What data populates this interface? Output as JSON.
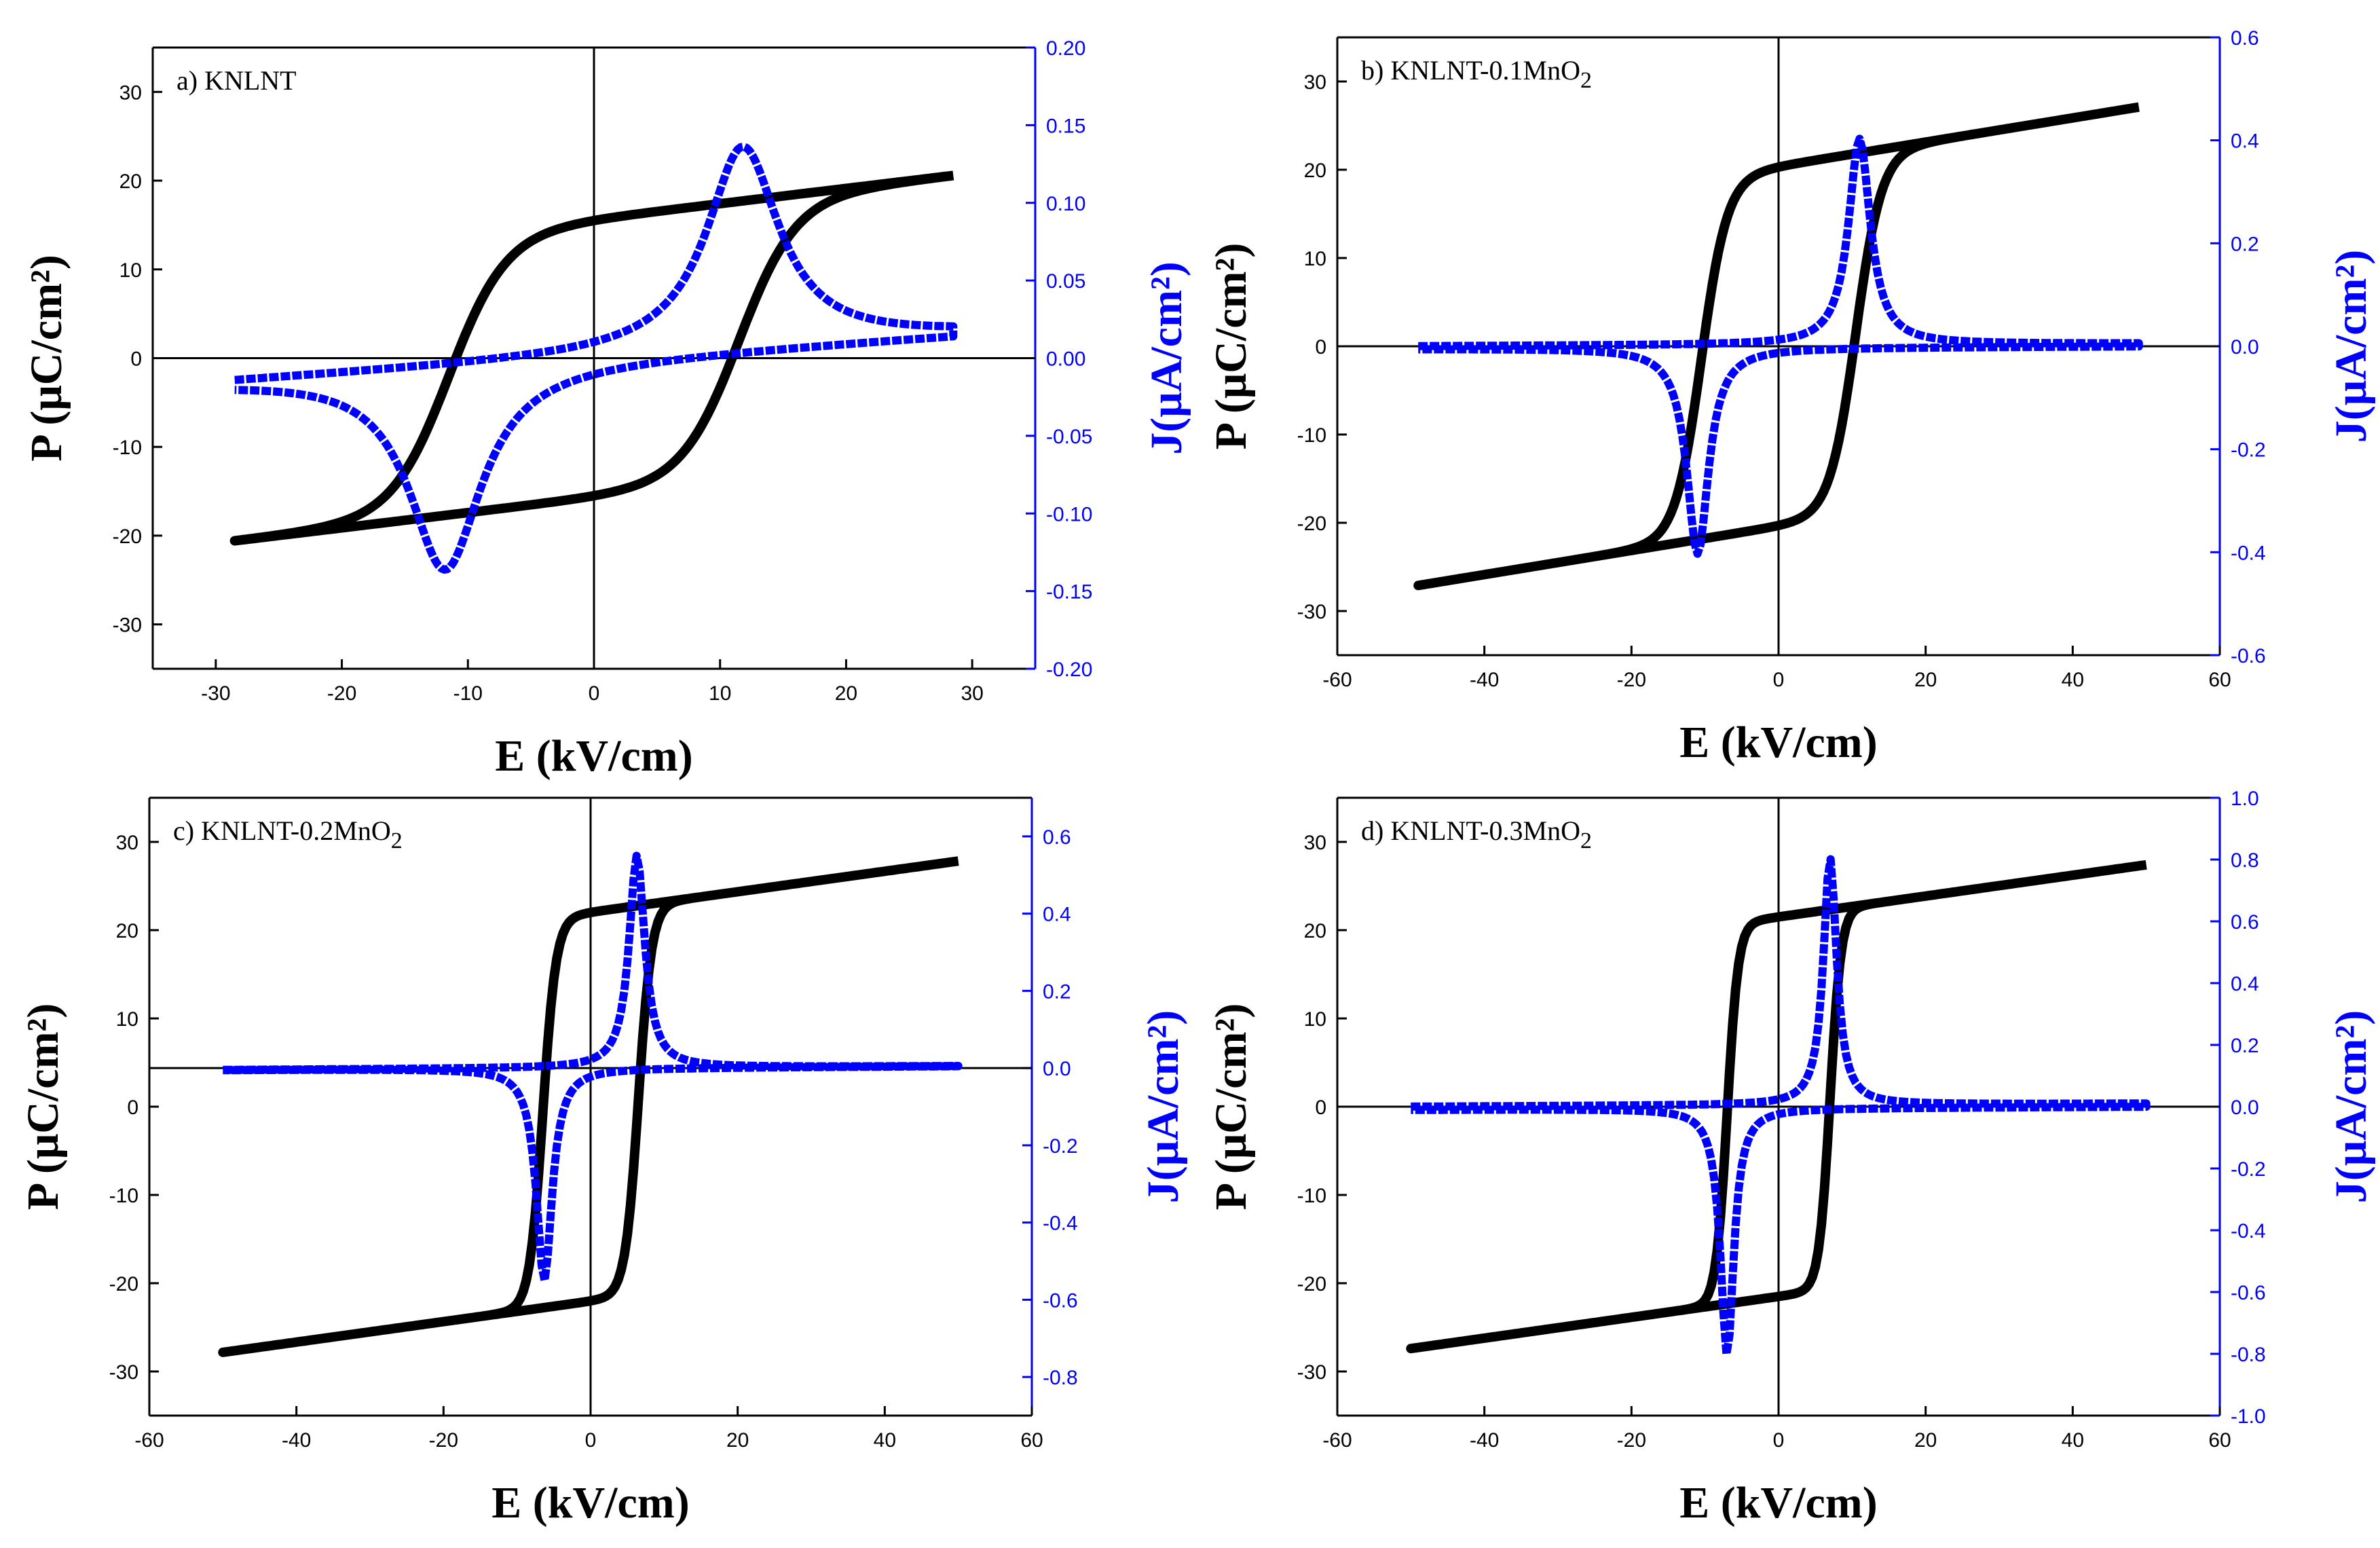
{
  "colors": {
    "p_loop": "#000000",
    "j_curve": "#0000ff",
    "axis_black": "#000000",
    "axis_blue": "#0000ff"
  },
  "chart_data": [
    {
      "type": "line",
      "panel": "a",
      "label": "a)  KNLNT",
      "xlabel": "E (kV/cm)",
      "ylabel_left": "P (μC/cm²)",
      "ylabel_right": "J(μA/cm²)",
      "xlim": [
        -35,
        35
      ],
      "ylim_left": [
        -35,
        35
      ],
      "ylim_right": [
        -0.2,
        0.2
      ],
      "xticks": [
        -30,
        -20,
        -10,
        0,
        10,
        20,
        30
      ],
      "yticks_left": [
        -30,
        -20,
        -10,
        0,
        10,
        20,
        30
      ],
      "yticks_right": [
        -0.2,
        -0.15,
        -0.1,
        -0.05,
        0.0,
        0.05,
        0.1,
        0.15,
        0.2
      ],
      "right_decimals": 2,
      "zero_line_left": 0,
      "series": [
        {
          "name": "P",
          "axis": "left",
          "emax": 28.5,
          "pmax": 20.4,
          "pr": 15.5,
          "ec": 11.5,
          "w": 4.5
        },
        {
          "name": "J",
          "axis": "right",
          "emax": 28.5,
          "peak_e": 11.8,
          "peak": 0.13,
          "width": 3.5,
          "base_lo": -0.015,
          "base_hi": 0.015
        }
      ]
    },
    {
      "type": "line",
      "panel": "b",
      "label": "b)  KNLNT-0.1MnO",
      "label_sub": "2",
      "xlabel": "E (kV/cm)",
      "ylabel_left": "P (μC/cm²)",
      "ylabel_right": "J(μA/cm²)",
      "xlim": [
        -60,
        60
      ],
      "ylim_left": [
        -35,
        35
      ],
      "ylim_right": [
        -0.6,
        0.6
      ],
      "xticks": [
        -60,
        -40,
        -20,
        0,
        20,
        40,
        60
      ],
      "yticks_left": [
        -30,
        -20,
        -10,
        0,
        10,
        20,
        30
      ],
      "yticks_right": [
        -0.6,
        -0.4,
        -0.2,
        0.0,
        0.2,
        0.4,
        0.6
      ],
      "right_decimals": 1,
      "zero_line_left": 0,
      "series": [
        {
          "name": "P",
          "axis": "left",
          "emax": 49,
          "pmax": 27,
          "pr": 20.3,
          "ec": 10.5,
          "w": 3.5
        },
        {
          "name": "J",
          "axis": "right",
          "emax": 49,
          "peak_e": 11,
          "peak": 0.4,
          "width": 1.8,
          "base_lo": 0.0,
          "base_hi": 0.005
        }
      ]
    },
    {
      "type": "line",
      "panel": "c",
      "label": "c)  KNLNT-0.2MnO",
      "label_sub": "2",
      "xlabel": "E (kV/cm)",
      "ylabel_left": "P (μC/cm²)",
      "ylabel_right": "J(μA/cm²)",
      "xlim": [
        -60,
        60
      ],
      "ylim_left": [
        -35,
        35
      ],
      "ylim_right": [
        -0.9,
        0.7
      ],
      "xticks": [
        -60,
        -40,
        -20,
        0,
        20,
        40,
        60
      ],
      "yticks_left": [
        -30,
        -20,
        -10,
        0,
        10,
        20,
        30
      ],
      "yticks_right": [
        -0.8,
        -0.6,
        -0.4,
        -0.2,
        0.0,
        0.2,
        0.4,
        0.6
      ],
      "right_decimals": 1,
      "zero_line_right": 0,
      "series": [
        {
          "name": "P",
          "axis": "left",
          "emax": 50,
          "pmax": 27.8,
          "pr": 22,
          "ec": 6.5,
          "w": 1.8
        },
        {
          "name": "J",
          "axis": "right",
          "emax": 50,
          "peak_e": 6.3,
          "peak": 0.55,
          "width": 1.3,
          "base_lo": -0.005,
          "base_hi": 0.005
        }
      ]
    },
    {
      "type": "line",
      "panel": "d",
      "label": "d)  KNLNT-0.3MnO",
      "label_sub": "2",
      "xlabel": "E (kV/cm)",
      "ylabel_left": "P (μC/cm²)",
      "ylabel_right": "J(μA/cm²)",
      "xlim": [
        -60,
        60
      ],
      "ylim_left": [
        -35,
        35
      ],
      "ylim_right": [
        -1.0,
        1.0
      ],
      "xticks": [
        -60,
        -40,
        -20,
        0,
        20,
        40,
        60
      ],
      "yticks_left": [
        -30,
        -20,
        -10,
        0,
        10,
        20,
        30
      ],
      "yticks_right": [
        -1.0,
        -0.8,
        -0.6,
        -0.4,
        -0.2,
        0.0,
        0.2,
        0.4,
        0.6,
        0.8,
        1.0
      ],
      "right_decimals": 1,
      "zero_line_left": 0,
      "series": [
        {
          "name": "P",
          "axis": "left",
          "emax": 50,
          "pmax": 27.4,
          "pr": 21.5,
          "ec": 7,
          "w": 1.5
        },
        {
          "name": "J",
          "axis": "right",
          "emax": 50,
          "peak_e": 7,
          "peak": 0.8,
          "width": 1.1,
          "base_lo": 0.0,
          "base_hi": 0.01
        }
      ]
    }
  ]
}
